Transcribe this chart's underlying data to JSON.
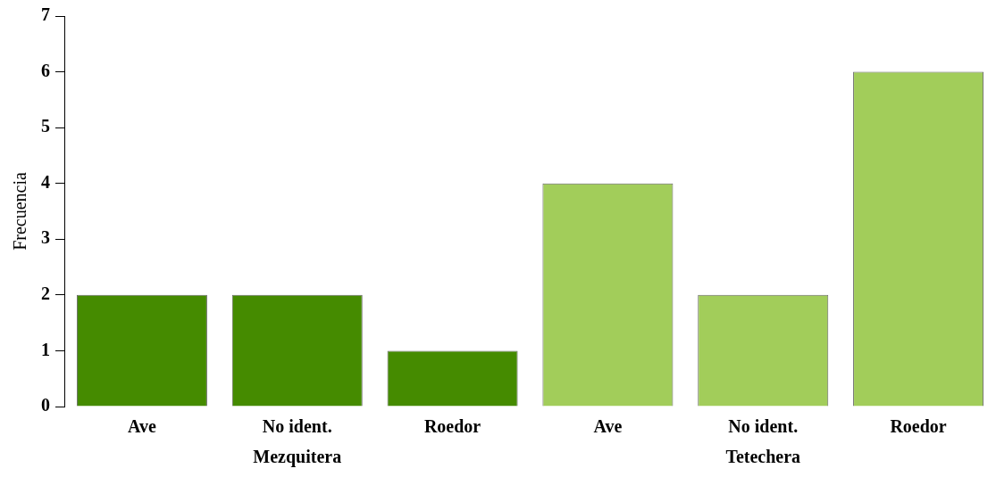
{
  "chart_data": {
    "type": "bar",
    "ylabel": "Frecuencia",
    "categories": [
      "Ave",
      "No ident.",
      "Roedor",
      "Ave",
      "No ident.",
      "Roedor"
    ],
    "series": [
      {
        "name": "Mezquitera",
        "color": "#458b00",
        "values": [
          2,
          2,
          1,
          null,
          null,
          null
        ]
      },
      {
        "name": "Tetechera",
        "color": "#a2cd5a",
        "values": [
          null,
          null,
          null,
          4,
          2,
          6
        ]
      }
    ],
    "ylim": [
      0,
      7
    ],
    "yticks": [
      0,
      1,
      2,
      3,
      4,
      5,
      6,
      7
    ],
    "grid": false,
    "legend": false
  }
}
